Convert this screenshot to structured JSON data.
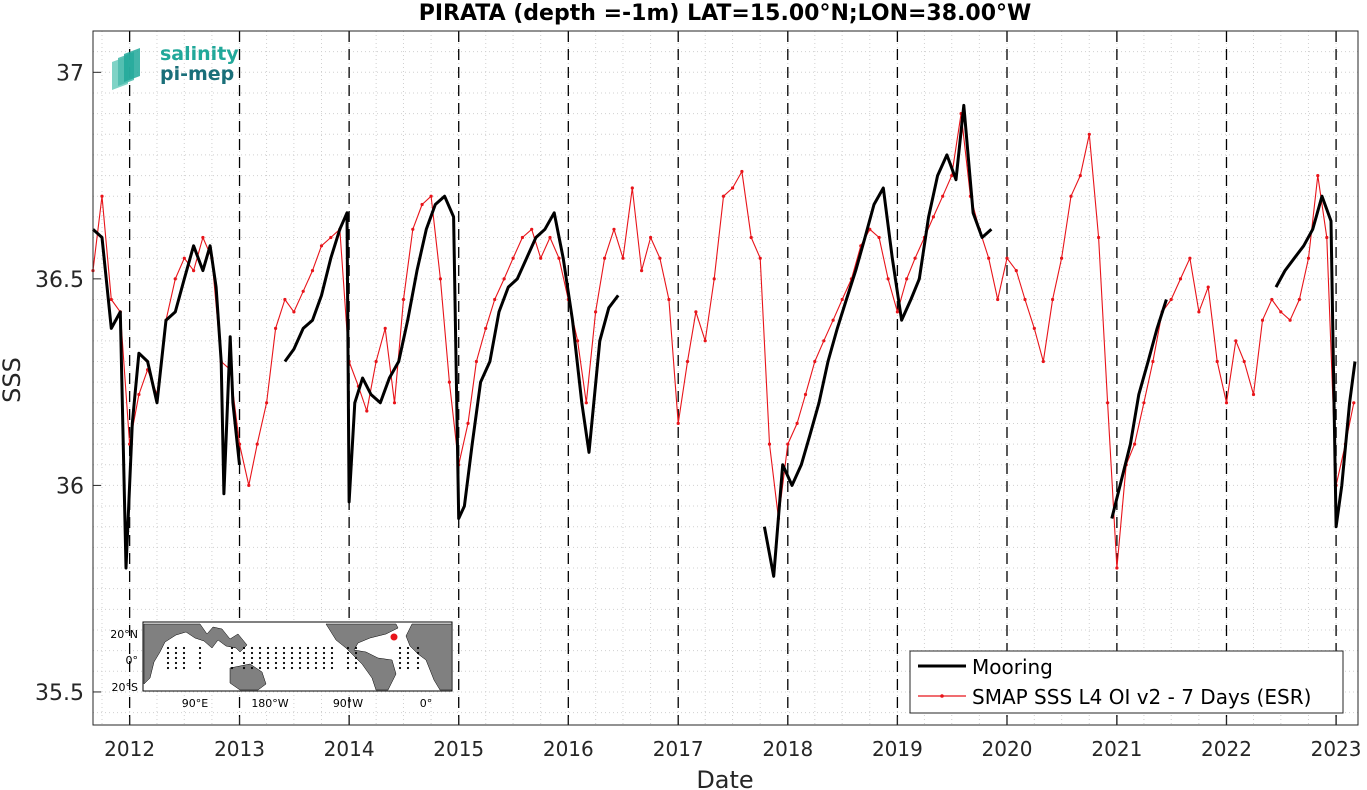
{
  "chart_data": {
    "type": "line",
    "title": "PIRATA (depth =-1m) LAT=15.00°N;LON=38.00°W",
    "xlabel": "Date",
    "ylabel": "SSS",
    "xlim": [
      "2011-09-01",
      "2023-03-15"
    ],
    "ylim": [
      35.42,
      37.1
    ],
    "x_ticks": [
      "2012",
      "2013",
      "2014",
      "2015",
      "2016",
      "2017",
      "2018",
      "2019",
      "2020",
      "2021",
      "2022",
      "2023"
    ],
    "y_ticks": [
      "35.5",
      "36",
      "36.5",
      "37"
    ],
    "grid": true,
    "year_boundaries": "dashed vertical lines at each January 1",
    "legend_position": "bottom-right",
    "series": [
      {
        "name": "Mooring",
        "color": "#000000",
        "style": "thick line",
        "points": [
          [
            "2011-09-01",
            36.62
          ],
          [
            "2011-10-01",
            36.6
          ],
          [
            "2011-11-01",
            36.38
          ],
          [
            "2011-12-01",
            36.42
          ],
          [
            "2011-12-20",
            35.8
          ],
          [
            "2012-01-10",
            36.15
          ],
          [
            "2012-02-01",
            36.32
          ],
          [
            "2012-03-01",
            36.3
          ],
          [
            "2012-04-01",
            36.2
          ],
          [
            "2012-05-01",
            36.4
          ],
          [
            "2012-06-01",
            36.42
          ],
          [
            "2012-07-01",
            36.5
          ],
          [
            "2012-08-01",
            36.58
          ],
          [
            "2012-09-01",
            36.52
          ],
          [
            "2012-09-25",
            36.58
          ],
          [
            "2012-10-15",
            36.48
          ],
          [
            "2012-11-01",
            36.3
          ],
          [
            "2012-11-10",
            35.98
          ],
          [
            "2012-12-01",
            36.36
          ],
          [
            "2012-12-10",
            36.2
          ],
          [
            "2013-01-01",
            36.05
          ],
          [
            "2013-06-01",
            36.3
          ],
          [
            "2013-07-01",
            36.33
          ],
          [
            "2013-08-01",
            36.38
          ],
          [
            "2013-09-01",
            36.4
          ],
          [
            "2013-10-01",
            36.46
          ],
          [
            "2013-11-01",
            36.55
          ],
          [
            "2013-12-01",
            36.62
          ],
          [
            "2013-12-25",
            36.66
          ],
          [
            "2014-01-01",
            35.96
          ],
          [
            "2014-01-20",
            36.2
          ],
          [
            "2014-02-15",
            36.26
          ],
          [
            "2014-03-15",
            36.22
          ],
          [
            "2014-04-15",
            36.2
          ],
          [
            "2014-05-15",
            36.26
          ],
          [
            "2014-06-15",
            36.3
          ],
          [
            "2014-07-15",
            36.4
          ],
          [
            "2014-08-15",
            36.52
          ],
          [
            "2014-09-15",
            36.62
          ],
          [
            "2014-10-15",
            36.68
          ],
          [
            "2014-11-15",
            36.7
          ],
          [
            "2014-12-15",
            36.65
          ],
          [
            "2015-01-01",
            35.92
          ],
          [
            "2015-01-20",
            35.95
          ],
          [
            "2015-02-15",
            36.1
          ],
          [
            "2015-03-15",
            36.25
          ],
          [
            "2015-04-15",
            36.3
          ],
          [
            "2015-05-15",
            36.42
          ],
          [
            "2015-06-15",
            36.48
          ],
          [
            "2015-07-15",
            36.5
          ],
          [
            "2015-08-15",
            36.55
          ],
          [
            "2015-09-15",
            36.6
          ],
          [
            "2015-10-15",
            36.62
          ],
          [
            "2015-11-15",
            36.66
          ],
          [
            "2015-12-15",
            36.55
          ],
          [
            "2016-01-15",
            36.4
          ],
          [
            "2016-02-15",
            36.2
          ],
          [
            "2016-03-10",
            36.08
          ],
          [
            "2016-04-15",
            36.35
          ],
          [
            "2016-05-15",
            36.43
          ],
          [
            "2016-06-15",
            36.46
          ],
          [
            "2017-10-15",
            35.9
          ],
          [
            "2017-11-15",
            35.78
          ],
          [
            "2017-12-15",
            36.05
          ],
          [
            "2018-01-15",
            36.0
          ],
          [
            "2018-02-15",
            36.05
          ],
          [
            "2018-03-15",
            36.12
          ],
          [
            "2018-04-15",
            36.2
          ],
          [
            "2018-05-15",
            36.3
          ],
          [
            "2018-06-15",
            36.38
          ],
          [
            "2018-07-15",
            36.45
          ],
          [
            "2018-08-15",
            36.52
          ],
          [
            "2018-09-15",
            36.6
          ],
          [
            "2018-10-15",
            36.68
          ],
          [
            "2018-11-15",
            36.72
          ],
          [
            "2018-12-15",
            36.55
          ],
          [
            "2019-01-15",
            36.4
          ],
          [
            "2019-02-15",
            36.45
          ],
          [
            "2019-03-15",
            36.5
          ],
          [
            "2019-04-15",
            36.65
          ],
          [
            "2019-05-15",
            36.75
          ],
          [
            "2019-06-15",
            36.8
          ],
          [
            "2019-07-15",
            36.74
          ],
          [
            "2019-08-10",
            36.92
          ],
          [
            "2019-09-10",
            36.66
          ],
          [
            "2019-10-10",
            36.6
          ],
          [
            "2019-11-10",
            36.62
          ],
          [
            "2020-12-15",
            35.92
          ],
          [
            "2021-02-15",
            36.1
          ],
          [
            "2021-03-15",
            36.22
          ],
          [
            "2021-04-15",
            36.3
          ],
          [
            "2021-05-15",
            36.38
          ],
          [
            "2021-06-15",
            36.45
          ],
          [
            "2022-06-15",
            36.48
          ],
          [
            "2022-07-15",
            36.52
          ],
          [
            "2022-08-15",
            36.55
          ],
          [
            "2022-09-15",
            36.58
          ],
          [
            "2022-10-15",
            36.62
          ],
          [
            "2022-11-15",
            36.7
          ],
          [
            "2022-12-15",
            36.64
          ],
          [
            "2023-01-01",
            35.9
          ],
          [
            "2023-01-20",
            36.0
          ],
          [
            "2023-02-15",
            36.2
          ],
          [
            "2023-03-05",
            36.3
          ]
        ]
      },
      {
        "name": "SMAP SSS L4 OI v2 - 7 Days (ESR)",
        "color": "#e8141a",
        "style": "thin line with small markers",
        "points": [
          [
            "2011-09-01",
            36.52
          ],
          [
            "2011-10-01",
            36.7
          ],
          [
            "2011-11-01",
            36.45
          ],
          [
            "2011-12-01",
            36.42
          ],
          [
            "2012-01-01",
            36.1
          ],
          [
            "2012-02-01",
            36.22
          ],
          [
            "2012-03-01",
            36.28
          ],
          [
            "2012-04-01",
            36.22
          ],
          [
            "2012-05-01",
            36.4
          ],
          [
            "2012-06-01",
            36.5
          ],
          [
            "2012-07-01",
            36.55
          ],
          [
            "2012-08-01",
            36.52
          ],
          [
            "2012-09-01",
            36.6
          ],
          [
            "2012-10-01",
            36.55
          ],
          [
            "2012-11-01",
            36.3
          ],
          [
            "2012-12-01",
            36.28
          ],
          [
            "2013-01-01",
            36.1
          ],
          [
            "2013-02-01",
            36.0
          ],
          [
            "2013-03-01",
            36.1
          ],
          [
            "2013-04-01",
            36.2
          ],
          [
            "2013-05-01",
            36.38
          ],
          [
            "2013-06-01",
            36.45
          ],
          [
            "2013-07-01",
            36.42
          ],
          [
            "2013-08-01",
            36.47
          ],
          [
            "2013-09-01",
            36.52
          ],
          [
            "2013-10-01",
            36.58
          ],
          [
            "2013-11-01",
            36.6
          ],
          [
            "2013-12-01",
            36.62
          ],
          [
            "2014-01-01",
            36.3
          ],
          [
            "2014-02-01",
            36.24
          ],
          [
            "2014-03-01",
            36.18
          ],
          [
            "2014-04-01",
            36.3
          ],
          [
            "2014-05-01",
            36.38
          ],
          [
            "2014-06-01",
            36.2
          ],
          [
            "2014-07-01",
            36.45
          ],
          [
            "2014-08-01",
            36.62
          ],
          [
            "2014-09-01",
            36.68
          ],
          [
            "2014-10-01",
            36.7
          ],
          [
            "2014-11-01",
            36.5
          ],
          [
            "2014-12-01",
            36.25
          ],
          [
            "2015-01-01",
            36.05
          ],
          [
            "2015-02-01",
            36.15
          ],
          [
            "2015-03-01",
            36.3
          ],
          [
            "2015-04-01",
            36.38
          ],
          [
            "2015-05-01",
            36.45
          ],
          [
            "2015-06-01",
            36.5
          ],
          [
            "2015-07-01",
            36.55
          ],
          [
            "2015-08-01",
            36.6
          ],
          [
            "2015-09-01",
            36.62
          ],
          [
            "2015-10-01",
            36.55
          ],
          [
            "2015-11-01",
            36.6
          ],
          [
            "2015-12-01",
            36.55
          ],
          [
            "2016-01-01",
            36.45
          ],
          [
            "2016-02-01",
            36.35
          ],
          [
            "2016-03-01",
            36.2
          ],
          [
            "2016-04-01",
            36.42
          ],
          [
            "2016-05-01",
            36.55
          ],
          [
            "2016-06-01",
            36.62
          ],
          [
            "2016-07-01",
            36.55
          ],
          [
            "2016-08-01",
            36.72
          ],
          [
            "2016-09-01",
            36.52
          ],
          [
            "2016-10-01",
            36.6
          ],
          [
            "2016-11-01",
            36.55
          ],
          [
            "2016-12-01",
            36.45
          ],
          [
            "2017-01-01",
            36.15
          ],
          [
            "2017-02-01",
            36.3
          ],
          [
            "2017-03-01",
            36.42
          ],
          [
            "2017-04-01",
            36.35
          ],
          [
            "2017-05-01",
            36.5
          ],
          [
            "2017-06-01",
            36.7
          ],
          [
            "2017-07-01",
            36.72
          ],
          [
            "2017-08-01",
            36.76
          ],
          [
            "2017-09-01",
            36.6
          ],
          [
            "2017-10-01",
            36.55
          ],
          [
            "2017-11-01",
            36.1
          ],
          [
            "2017-12-01",
            35.92
          ],
          [
            "2018-01-01",
            36.1
          ],
          [
            "2018-02-01",
            36.15
          ],
          [
            "2018-03-01",
            36.22
          ],
          [
            "2018-04-01",
            36.3
          ],
          [
            "2018-05-01",
            36.35
          ],
          [
            "2018-06-01",
            36.4
          ],
          [
            "2018-07-01",
            36.45
          ],
          [
            "2018-08-01",
            36.5
          ],
          [
            "2018-09-01",
            36.58
          ],
          [
            "2018-10-01",
            36.62
          ],
          [
            "2018-11-01",
            36.6
          ],
          [
            "2018-12-01",
            36.5
          ],
          [
            "2019-01-01",
            36.42
          ],
          [
            "2019-02-01",
            36.5
          ],
          [
            "2019-03-01",
            36.55
          ],
          [
            "2019-04-01",
            36.6
          ],
          [
            "2019-05-01",
            36.65
          ],
          [
            "2019-06-01",
            36.7
          ],
          [
            "2019-07-01",
            36.75
          ],
          [
            "2019-08-01",
            36.9
          ],
          [
            "2019-09-01",
            36.7
          ],
          [
            "2019-10-01",
            36.62
          ],
          [
            "2019-11-01",
            36.55
          ],
          [
            "2019-12-01",
            36.45
          ],
          [
            "2020-01-01",
            36.55
          ],
          [
            "2020-02-01",
            36.52
          ],
          [
            "2020-03-01",
            36.45
          ],
          [
            "2020-04-01",
            36.38
          ],
          [
            "2020-05-01",
            36.3
          ],
          [
            "2020-06-01",
            36.45
          ],
          [
            "2020-07-01",
            36.55
          ],
          [
            "2020-08-01",
            36.7
          ],
          [
            "2020-09-01",
            36.75
          ],
          [
            "2020-10-01",
            36.85
          ],
          [
            "2020-11-01",
            36.6
          ],
          [
            "2020-12-01",
            36.2
          ],
          [
            "2021-01-01",
            35.8
          ],
          [
            "2021-02-01",
            36.05
          ],
          [
            "2021-03-01",
            36.1
          ],
          [
            "2021-04-01",
            36.2
          ],
          [
            "2021-05-01",
            36.3
          ],
          [
            "2021-06-01",
            36.42
          ],
          [
            "2021-07-01",
            36.45
          ],
          [
            "2021-08-01",
            36.5
          ],
          [
            "2021-09-01",
            36.55
          ],
          [
            "2021-10-01",
            36.42
          ],
          [
            "2021-11-01",
            36.48
          ],
          [
            "2021-12-01",
            36.3
          ],
          [
            "2022-01-01",
            36.2
          ],
          [
            "2022-02-01",
            36.35
          ],
          [
            "2022-03-01",
            36.3
          ],
          [
            "2022-04-01",
            36.22
          ],
          [
            "2022-05-01",
            36.4
          ],
          [
            "2022-06-01",
            36.45
          ],
          [
            "2022-07-01",
            36.42
          ],
          [
            "2022-08-01",
            36.4
          ],
          [
            "2022-09-01",
            36.45
          ],
          [
            "2022-10-01",
            36.55
          ],
          [
            "2022-11-01",
            36.75
          ],
          [
            "2022-12-01",
            36.6
          ],
          [
            "2023-01-01",
            36.0
          ],
          [
            "2023-02-01",
            36.1
          ],
          [
            "2023-03-01",
            36.2
          ]
        ]
      }
    ]
  },
  "logo": {
    "line1": "salinity",
    "line2": "pi-mep"
  },
  "inset_map": {
    "y_labels": [
      "20°N",
      "0°",
      "20°S"
    ],
    "x_labels": [
      "90°E",
      "180°W",
      "90°W",
      "0°"
    ],
    "highlight_color": "#e8141a"
  }
}
